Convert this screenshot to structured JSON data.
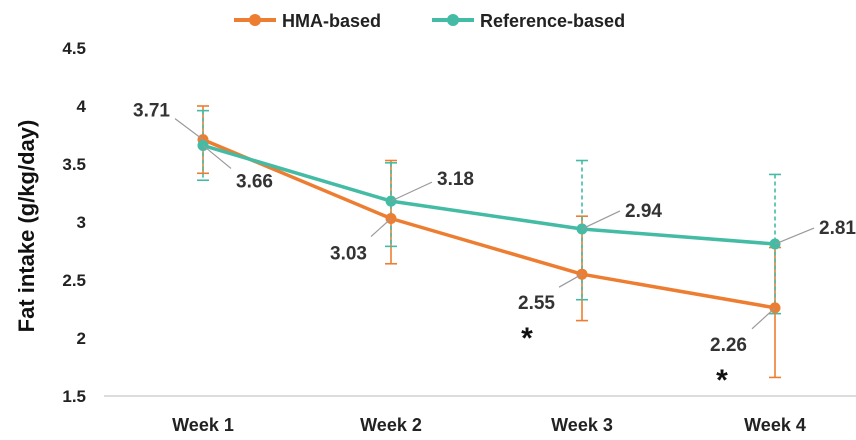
{
  "chart_data": {
    "type": "line",
    "categories": [
      "Week 1",
      "Week 2",
      "Week 3",
      "Week 4"
    ],
    "ylabel": "Fat intake (g/kg/day)",
    "ylim": [
      1.5,
      4.5
    ],
    "yticks": [
      "1.5",
      "2",
      "2.5",
      "3",
      "3.5",
      "4",
      "4.5"
    ],
    "legend_position": "top",
    "grid": false,
    "series": [
      {
        "name": "HMA-based",
        "color": "#ED7D31",
        "values": [
          3.71,
          3.03,
          2.55,
          2.26
        ],
        "labels": [
          "3.71",
          "3.03",
          "2.55",
          "2.26"
        ],
        "error_upper": [
          4.0,
          3.53,
          3.05,
          2.78
        ],
        "error_lower": [
          3.42,
          2.64,
          2.15,
          1.66
        ]
      },
      {
        "name": "Reference-based",
        "color": "#44BBA4",
        "values": [
          3.66,
          3.18,
          2.94,
          2.81
        ],
        "labels": [
          "3.66",
          "3.18",
          "2.94",
          "2.81"
        ],
        "error_upper": [
          3.96,
          3.51,
          3.53,
          3.41
        ],
        "error_lower": [
          3.36,
          2.79,
          2.33,
          2.21
        ]
      }
    ],
    "annotations": [
      {
        "text": "*",
        "category": "Week 3",
        "meaning": "significant"
      },
      {
        "text": "*",
        "category": "Week 4",
        "meaning": "significant"
      }
    ]
  }
}
